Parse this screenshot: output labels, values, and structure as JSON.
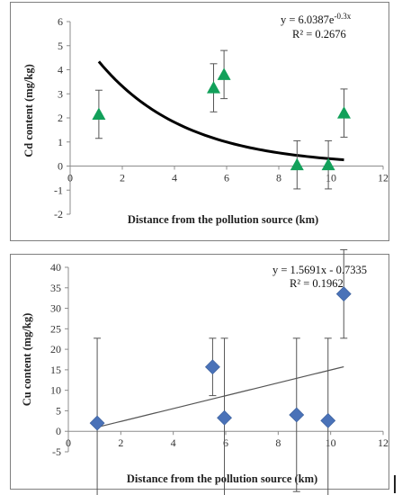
{
  "chart_data": [
    {
      "type": "scatter",
      "xlabel": "Distance from the pollution source (km)",
      "ylabel": "Cd content (mg/kg)",
      "xlim": [
        0,
        12
      ],
      "ylim": [
        -2,
        6
      ],
      "xticks": [
        0,
        2,
        4,
        6,
        8,
        10,
        12
      ],
      "yticks": [
        -2,
        -1,
        0,
        1,
        2,
        3,
        4,
        5,
        6
      ],
      "grid": false,
      "marker": "triangle",
      "marker_color": "#12a05a",
      "points": [
        {
          "x": 1.1,
          "y": 2.15,
          "err": 1.0
        },
        {
          "x": 5.5,
          "y": 3.25,
          "err": 1.0
        },
        {
          "x": 5.9,
          "y": 3.8,
          "err": 1.0
        },
        {
          "x": 8.7,
          "y": 0.05,
          "err": 1.0
        },
        {
          "x": 9.9,
          "y": 0.05,
          "err": 1.0
        },
        {
          "x": 10.5,
          "y": 2.2,
          "err": 1.0
        }
      ],
      "trendline": {
        "kind": "exponential",
        "a": 6.0387,
        "b": -0.3,
        "x_range": [
          1.1,
          10.5
        ],
        "color": "#000000"
      },
      "equation": "y = 6.0387e",
      "equation_exp": "-0.3x",
      "r2": "R² = 0.2676"
    },
    {
      "type": "scatter",
      "xlabel": "Distance from the pollution source (km)",
      "ylabel": "Cu content (mg/kg)",
      "xlim": [
        0,
        12
      ],
      "ylim": [
        -5,
        40
      ],
      "xticks": [
        0,
        2,
        4,
        6,
        8,
        10,
        12
      ],
      "yticks": [
        -5,
        0,
        5,
        10,
        15,
        20,
        25,
        30,
        35,
        40
      ],
      "grid": false,
      "marker": "diamond",
      "marker_color": "#4a72b8",
      "points": [
        {
          "x": 1.1,
          "y": 2.0,
          "err": 20.7
        },
        {
          "x": 5.5,
          "y": 15.7,
          "err": 7.0
        },
        {
          "x": 5.95,
          "y": 3.3,
          "err": 19.4
        },
        {
          "x": 8.7,
          "y": 4.0,
          "err": 18.7
        },
        {
          "x": 9.9,
          "y": 2.6,
          "err": 20.1
        },
        {
          "x": 10.5,
          "y": 33.5,
          "err": 10.8
        }
      ],
      "trendline": {
        "kind": "linear",
        "m": 1.5691,
        "c": -0.7335,
        "x_range": [
          1.1,
          10.5
        ],
        "color": "#555555"
      },
      "equation": "y = 1.5691x - 0.7335",
      "r2": "R² = 0.1962"
    }
  ]
}
